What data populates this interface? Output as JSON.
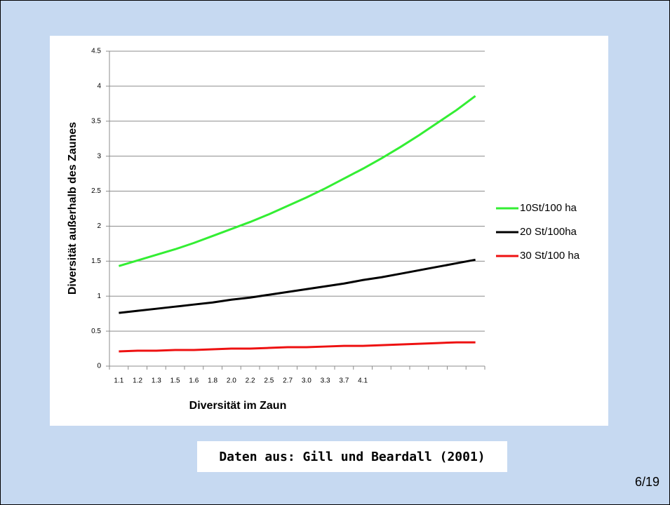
{
  "chart_data": {
    "type": "line",
    "xlabel": "Diversität im Zaun",
    "ylabel": "Diversität außerhalb des Zaunes",
    "categories": [
      "1.1",
      "1.2",
      "1.3",
      "1.5",
      "1.6",
      "1.8",
      "2.0",
      "2.2",
      "2.5",
      "2.7",
      "3.0",
      "3.3",
      "3.7",
      "4.1",
      null,
      null,
      null,
      null,
      null,
      null
    ],
    "series": [
      {
        "name": "10St/100 ha",
        "color": "#33ee33",
        "values": [
          1.43,
          1.51,
          1.59,
          1.67,
          1.76,
          1.86,
          1.96,
          2.06,
          2.17,
          2.29,
          2.41,
          2.54,
          2.68,
          2.82,
          2.97,
          3.13,
          3.3,
          3.48,
          3.66,
          3.86
        ]
      },
      {
        "name": "20 St/100ha",
        "color": "#000000",
        "values": [
          0.76,
          0.79,
          0.82,
          0.85,
          0.88,
          0.91,
          0.95,
          0.98,
          1.02,
          1.06,
          1.1,
          1.14,
          1.18,
          1.23,
          1.27,
          1.32,
          1.37,
          1.42,
          1.47,
          1.52
        ]
      },
      {
        "name": "30 St/100 ha",
        "color": "#ee1111",
        "values": [
          0.21,
          0.22,
          0.22,
          0.23,
          0.23,
          0.24,
          0.25,
          0.25,
          0.26,
          0.27,
          0.27,
          0.28,
          0.29,
          0.29,
          0.3,
          0.31,
          0.32,
          0.33,
          0.34,
          0.34
        ]
      }
    ],
    "ylim": [
      0,
      4.5
    ],
    "yticks": [
      0,
      0.5,
      1,
      1.5,
      2,
      2.5,
      3,
      3.5,
      4,
      4.5
    ],
    "grid": true,
    "legend": "right"
  },
  "caption": "Daten aus: Gill und Beardall (2001)",
  "page_number": "6/19"
}
